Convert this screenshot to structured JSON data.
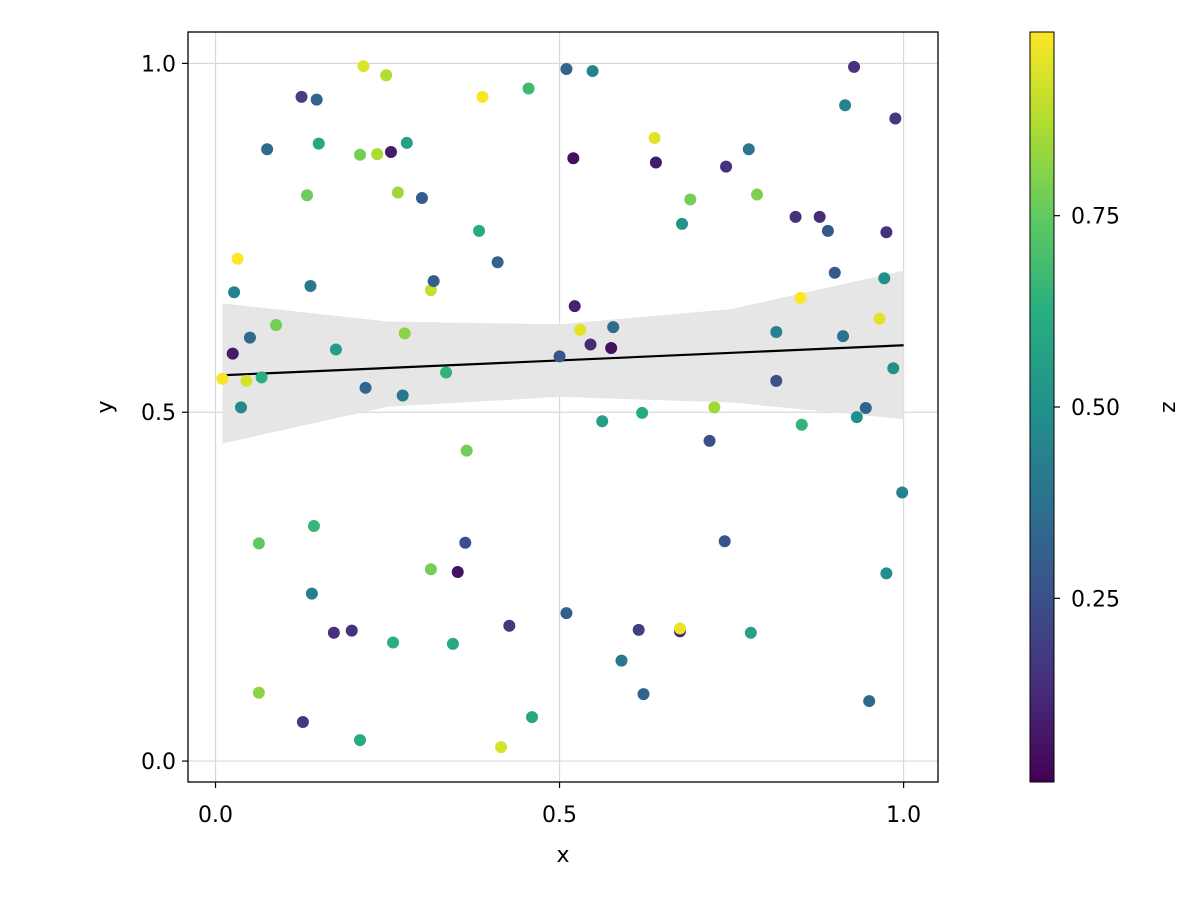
{
  "chart_data": {
    "type": "scatter",
    "title": "",
    "xlabel": "x",
    "ylabel": "y",
    "xlim": [
      -0.04,
      1.05
    ],
    "ylim": [
      -0.03,
      1.045
    ],
    "xticks": [
      0.0,
      0.5,
      1.0
    ],
    "xtick_labels": [
      "0.0",
      "0.5",
      "1.0"
    ],
    "yticks": [
      0.0,
      0.5,
      1.0
    ],
    "ytick_labels": [
      "0.0",
      "0.5",
      "1.0"
    ],
    "grid": true,
    "colorbar": {
      "label": "z",
      "colormap": "viridis",
      "range": [
        0.01,
        0.99
      ],
      "ticks": [
        0.25,
        0.5,
        0.75
      ],
      "tick_labels": [
        "0.25",
        "0.50",
        "0.75"
      ]
    },
    "regression": {
      "line": [
        [
          0.01,
          0.553
        ],
        [
          1.0,
          0.596
        ]
      ],
      "band_upper": [
        [
          0.01,
          0.656
        ],
        [
          0.25,
          0.63
        ],
        [
          0.5,
          0.626
        ],
        [
          0.75,
          0.648
        ],
        [
          1.0,
          0.703
        ]
      ],
      "band_lower": [
        [
          0.01,
          0.455
        ],
        [
          0.25,
          0.508
        ],
        [
          0.5,
          0.522
        ],
        [
          0.75,
          0.514
        ],
        [
          1.0,
          0.49
        ]
      ],
      "line_color": "#000000",
      "band_color": "#e6e6e6"
    },
    "points": [
      {
        "x": 0.01,
        "y": 0.548,
        "z": 0.98
      },
      {
        "x": 0.025,
        "y": 0.584,
        "z": 0.08
      },
      {
        "x": 0.027,
        "y": 0.672,
        "z": 0.45
      },
      {
        "x": 0.032,
        "y": 0.72,
        "z": 0.99
      },
      {
        "x": 0.037,
        "y": 0.507,
        "z": 0.47
      },
      {
        "x": 0.045,
        "y": 0.545,
        "z": 0.93
      },
      {
        "x": 0.05,
        "y": 0.607,
        "z": 0.35
      },
      {
        "x": 0.063,
        "y": 0.312,
        "z": 0.75
      },
      {
        "x": 0.063,
        "y": 0.098,
        "z": 0.82
      },
      {
        "x": 0.067,
        "y": 0.55,
        "z": 0.63
      },
      {
        "x": 0.075,
        "y": 0.877,
        "z": 0.35
      },
      {
        "x": 0.088,
        "y": 0.625,
        "z": 0.78
      },
      {
        "x": 0.125,
        "y": 0.952,
        "z": 0.2
      },
      {
        "x": 0.127,
        "y": 0.056,
        "z": 0.18
      },
      {
        "x": 0.133,
        "y": 0.811,
        "z": 0.77
      },
      {
        "x": 0.138,
        "y": 0.681,
        "z": 0.4
      },
      {
        "x": 0.14,
        "y": 0.24,
        "z": 0.43
      },
      {
        "x": 0.143,
        "y": 0.337,
        "z": 0.66
      },
      {
        "x": 0.147,
        "y": 0.948,
        "z": 0.32
      },
      {
        "x": 0.15,
        "y": 0.885,
        "z": 0.6
      },
      {
        "x": 0.172,
        "y": 0.184,
        "z": 0.15
      },
      {
        "x": 0.175,
        "y": 0.59,
        "z": 0.55
      },
      {
        "x": 0.198,
        "y": 0.187,
        "z": 0.15
      },
      {
        "x": 0.21,
        "y": 0.869,
        "z": 0.78
      },
      {
        "x": 0.21,
        "y": 0.03,
        "z": 0.62
      },
      {
        "x": 0.215,
        "y": 0.996,
        "z": 0.94
      },
      {
        "x": 0.218,
        "y": 0.535,
        "z": 0.33
      },
      {
        "x": 0.235,
        "y": 0.87,
        "z": 0.87
      },
      {
        "x": 0.248,
        "y": 0.983,
        "z": 0.88
      },
      {
        "x": 0.255,
        "y": 0.873,
        "z": 0.08
      },
      {
        "x": 0.258,
        "y": 0.17,
        "z": 0.63
      },
      {
        "x": 0.265,
        "y": 0.815,
        "z": 0.85
      },
      {
        "x": 0.272,
        "y": 0.524,
        "z": 0.4
      },
      {
        "x": 0.275,
        "y": 0.613,
        "z": 0.82
      },
      {
        "x": 0.278,
        "y": 0.886,
        "z": 0.57
      },
      {
        "x": 0.3,
        "y": 0.807,
        "z": 0.3
      },
      {
        "x": 0.313,
        "y": 0.275,
        "z": 0.78
      },
      {
        "x": 0.313,
        "y": 0.675,
        "z": 0.9
      },
      {
        "x": 0.317,
        "y": 0.688,
        "z": 0.3
      },
      {
        "x": 0.335,
        "y": 0.557,
        "z": 0.65
      },
      {
        "x": 0.345,
        "y": 0.168,
        "z": 0.6
      },
      {
        "x": 0.352,
        "y": 0.271,
        "z": 0.06
      },
      {
        "x": 0.363,
        "y": 0.313,
        "z": 0.25
      },
      {
        "x": 0.365,
        "y": 0.445,
        "z": 0.78
      },
      {
        "x": 0.383,
        "y": 0.76,
        "z": 0.62
      },
      {
        "x": 0.388,
        "y": 0.952,
        "z": 0.98
      },
      {
        "x": 0.41,
        "y": 0.715,
        "z": 0.32
      },
      {
        "x": 0.415,
        "y": 0.02,
        "z": 0.93
      },
      {
        "x": 0.427,
        "y": 0.194,
        "z": 0.18
      },
      {
        "x": 0.455,
        "y": 0.964,
        "z": 0.68
      },
      {
        "x": 0.46,
        "y": 0.063,
        "z": 0.6
      },
      {
        "x": 0.5,
        "y": 0.58,
        "z": 0.27
      },
      {
        "x": 0.51,
        "y": 0.992,
        "z": 0.33
      },
      {
        "x": 0.51,
        "y": 0.212,
        "z": 0.31
      },
      {
        "x": 0.52,
        "y": 0.864,
        "z": 0.05
      },
      {
        "x": 0.522,
        "y": 0.652,
        "z": 0.1
      },
      {
        "x": 0.53,
        "y": 0.618,
        "z": 0.95
      },
      {
        "x": 0.545,
        "y": 0.597,
        "z": 0.13
      },
      {
        "x": 0.548,
        "y": 0.989,
        "z": 0.45
      },
      {
        "x": 0.562,
        "y": 0.487,
        "z": 0.56
      },
      {
        "x": 0.575,
        "y": 0.592,
        "z": 0.05
      },
      {
        "x": 0.578,
        "y": 0.622,
        "z": 0.36
      },
      {
        "x": 0.59,
        "y": 0.144,
        "z": 0.4
      },
      {
        "x": 0.615,
        "y": 0.188,
        "z": 0.2
      },
      {
        "x": 0.62,
        "y": 0.499,
        "z": 0.62
      },
      {
        "x": 0.622,
        "y": 0.096,
        "z": 0.32
      },
      {
        "x": 0.638,
        "y": 0.893,
        "z": 0.95
      },
      {
        "x": 0.64,
        "y": 0.858,
        "z": 0.08
      },
      {
        "x": 0.675,
        "y": 0.186,
        "z": 0.1
      },
      {
        "x": 0.675,
        "y": 0.19,
        "z": 0.96
      },
      {
        "x": 0.678,
        "y": 0.77,
        "z": 0.52
      },
      {
        "x": 0.69,
        "y": 0.805,
        "z": 0.78
      },
      {
        "x": 0.718,
        "y": 0.459,
        "z": 0.25
      },
      {
        "x": 0.725,
        "y": 0.507,
        "z": 0.85
      },
      {
        "x": 0.74,
        "y": 0.315,
        "z": 0.27
      },
      {
        "x": 0.742,
        "y": 0.852,
        "z": 0.15
      },
      {
        "x": 0.775,
        "y": 0.877,
        "z": 0.4
      },
      {
        "x": 0.778,
        "y": 0.184,
        "z": 0.57
      },
      {
        "x": 0.787,
        "y": 0.812,
        "z": 0.8
      },
      {
        "x": 0.815,
        "y": 0.615,
        "z": 0.45
      },
      {
        "x": 0.815,
        "y": 0.545,
        "z": 0.25
      },
      {
        "x": 0.843,
        "y": 0.78,
        "z": 0.15
      },
      {
        "x": 0.85,
        "y": 0.664,
        "z": 0.99
      },
      {
        "x": 0.852,
        "y": 0.482,
        "z": 0.65
      },
      {
        "x": 0.878,
        "y": 0.78,
        "z": 0.13
      },
      {
        "x": 0.89,
        "y": 0.76,
        "z": 0.28
      },
      {
        "x": 0.9,
        "y": 0.7,
        "z": 0.28
      },
      {
        "x": 0.912,
        "y": 0.609,
        "z": 0.38
      },
      {
        "x": 0.915,
        "y": 0.94,
        "z": 0.45
      },
      {
        "x": 0.928,
        "y": 0.995,
        "z": 0.15
      },
      {
        "x": 0.932,
        "y": 0.493,
        "z": 0.5
      },
      {
        "x": 0.945,
        "y": 0.506,
        "z": 0.32
      },
      {
        "x": 0.95,
        "y": 0.086,
        "z": 0.35
      },
      {
        "x": 0.965,
        "y": 0.634,
        "z": 0.95
      },
      {
        "x": 0.972,
        "y": 0.692,
        "z": 0.5
      },
      {
        "x": 0.975,
        "y": 0.758,
        "z": 0.15
      },
      {
        "x": 0.975,
        "y": 0.269,
        "z": 0.5
      },
      {
        "x": 0.985,
        "y": 0.563,
        "z": 0.5
      },
      {
        "x": 0.988,
        "y": 0.921,
        "z": 0.18
      },
      {
        "x": 0.998,
        "y": 0.385,
        "z": 0.45
      }
    ]
  }
}
